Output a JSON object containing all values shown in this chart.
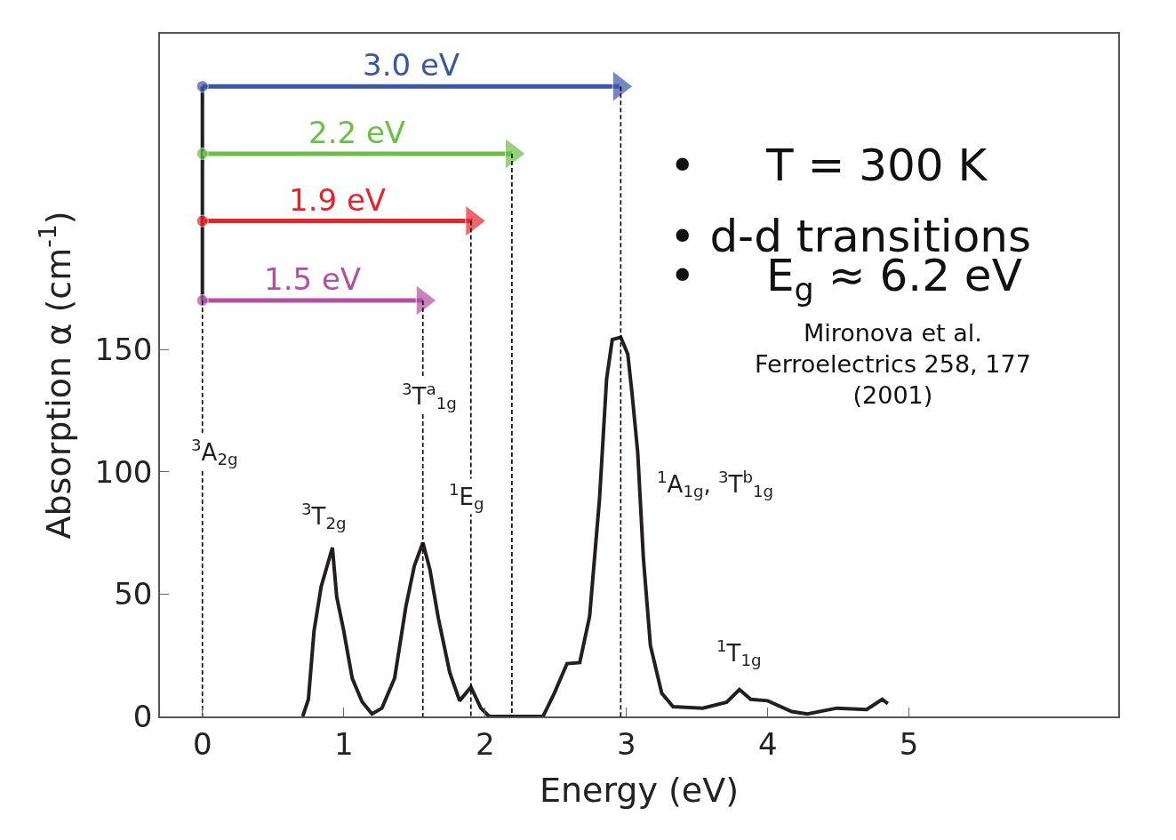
{
  "chart_data": {
    "type": "line",
    "xlabel": "Energy (eV)",
    "ylabel": "Absorption α (cm$^{-1}$)",
    "xlim": [
      -0.3,
      6.48
    ],
    "ylim": [
      0,
      279
    ],
    "xticks": [
      0,
      1,
      2,
      3,
      4,
      5
    ],
    "yticks": [
      0,
      50,
      100,
      150
    ],
    "marker": "none",
    "line_style": "solid",
    "series": [
      {
        "color": "#231f20",
        "x": [
          0.71,
          0.75,
          0.79,
          0.84,
          0.92,
          0.95,
          1.0,
          1.06,
          1.13,
          1.2,
          1.27,
          1.36,
          1.44,
          1.5,
          1.56,
          1.61,
          1.67,
          1.75,
          1.82,
          1.9,
          1.97,
          2.03,
          2.2,
          2.41,
          2.49,
          2.58,
          2.67,
          2.74,
          2.81,
          2.86,
          2.9,
          2.96,
          3.01,
          3.04,
          3.08,
          3.12,
          3.17,
          3.25,
          3.33,
          3.54,
          3.71,
          3.8,
          3.88,
          4.0,
          4.17,
          4.28,
          4.49,
          4.7,
          4.81,
          4.85
        ],
        "values": [
          0,
          7,
          35,
          53,
          69,
          49,
          35,
          15.6,
          6,
          1,
          3.4,
          15.6,
          45,
          61.6,
          71,
          60,
          40,
          18,
          6.4,
          12,
          3.4,
          0,
          0,
          0,
          9.5,
          21.6,
          22,
          41,
          89,
          138,
          154,
          155,
          148,
          132,
          108,
          65,
          29,
          9.5,
          4,
          3.4,
          5.8,
          11,
          7,
          6.4,
          2,
          1,
          3.4,
          2.8,
          7,
          5.2
        ]
      },
      {
        "color": "#000000",
        "x": [
          0,
          0
        ],
        "values": [
          170,
          0
        ],
        "line_style": "dashed"
      },
      {
        "color": "#000000",
        "x": [
          1.56,
          1.56
        ],
        "values": [
          170,
          0
        ],
        "line_style": "dashed"
      },
      {
        "color": "#000000",
        "x": [
          1.9,
          1.9
        ],
        "values": [
          202.5,
          0
        ],
        "line_style": "dashed"
      },
      {
        "color": "#000000",
        "x": [
          2.19,
          2.19
        ],
        "values": [
          230,
          0
        ],
        "line_style": "dashed"
      },
      {
        "color": "#000000",
        "x": [
          2.96,
          2.96
        ],
        "values": [
          257.5,
          0
        ],
        "line_style": "dashed"
      },
      {
        "color": "#231f20",
        "x": [
          0,
          0
        ],
        "values": [
          170,
          257.5
        ]
      },
      {
        "name": "3.0 eV",
        "color": "#3a56a8",
        "x": [
          0,
          2.95
        ],
        "values": [
          257.5,
          257.5
        ],
        "marker": "circle"
      },
      {
        "name": "2.2 eV",
        "color": "#6abf45",
        "x": [
          0,
          2.19
        ],
        "values": [
          230,
          230
        ],
        "marker": "circle"
      },
      {
        "name": "1.9 eV",
        "color": "#e8242a",
        "x": [
          0,
          1.91
        ],
        "values": [
          202.5,
          202.5
        ],
        "marker": "circle"
      },
      {
        "name": "1.5 eV",
        "color": "#b54ea5",
        "x": [
          0,
          1.56
        ],
        "values": [
          170,
          170
        ],
        "marker": "circle"
      }
    ],
    "annotations": [
      "•     T = 300 K",
      "• d-d transitions",
      "•     E$_{g}$ ≈ 6.2 eV",
      "Mironova et al.\nFerroelectrics 258, 177\n(2001)",
      {
        "text": "$^{3}$A$_{2g}$",
        "x": 0,
        "y": 108
      },
      {
        "text": "$^{3}$T$_{2g}$",
        "x": 0.92,
        "y": 69
      },
      {
        "text": "$^{3}$T$^{a}$$_{1g}$",
        "x": 1.58,
        "y": 131
      },
      {
        "text": "$^{1}$E$_{g}$",
        "x": 1.88,
        "y": 90
      },
      {
        "text": "$^{1}$A$_{1g}$, $^{3}$T$^{b}$$_{1g}$",
        "x": 3.08,
        "y": 108
      },
      {
        "text": "$^{1}$T$_{1g}$",
        "x": 3.8,
        "y": 11
      }
    ]
  }
}
